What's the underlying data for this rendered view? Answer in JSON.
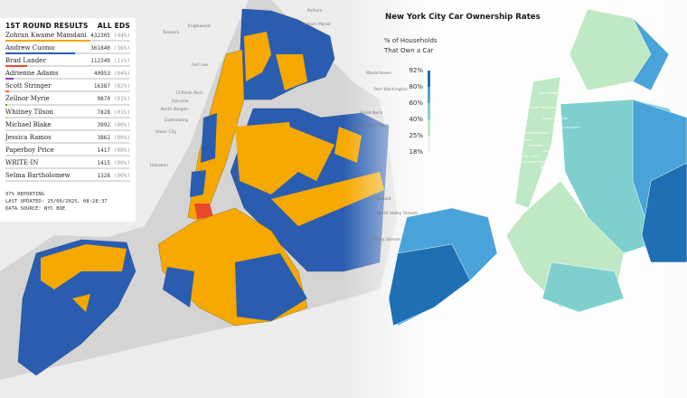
{
  "results_panel": {
    "title": "1ST ROUND RESULTS",
    "scope": "ALL EDS",
    "candidates": [
      {
        "name": "Zohran Kwame Mamdani",
        "votes": "432305",
        "pct": "(44%)",
        "share": 44,
        "color": "#f5a800"
      },
      {
        "name": "Andrew Cuomo",
        "votes": "361840",
        "pct": "(36%)",
        "share": 36,
        "color": "#2a5db0"
      },
      {
        "name": "Brad Lander",
        "votes": "112349",
        "pct": "(11%)",
        "share": 11,
        "color": "#e8492f"
      },
      {
        "name": "Adrienne Adams",
        "votes": "40953",
        "pct": "(04%)",
        "share": 4,
        "color": "#8a3fc9"
      },
      {
        "name": "Scott Stringer",
        "votes": "16387",
        "pct": "(02%)",
        "share": 2,
        "color": "#e8692f"
      },
      {
        "name": "Zellnor Myrie",
        "votes": "9870",
        "pct": "(01%)",
        "share": 1,
        "color": "#5aa832"
      },
      {
        "name": "Whitney Tilson",
        "votes": "7828",
        "pct": "(01%)",
        "share": 1,
        "color": "#b6e07a"
      },
      {
        "name": "Michael Blake",
        "votes": "3992",
        "pct": "(00%)",
        "share": 0,
        "color": "#999999"
      },
      {
        "name": "Jessica Ramos",
        "votes": "3862",
        "pct": "(00%)",
        "share": 0,
        "color": "#999999"
      },
      {
        "name": "Paperboy Price",
        "votes": "1417",
        "pct": "(00%)",
        "share": 0,
        "color": "#999999"
      },
      {
        "name": "WRITE-IN",
        "votes": "1415",
        "pct": "(00%)",
        "share": 0,
        "color": "#999999"
      },
      {
        "name": "Selma Bartholomew",
        "votes": "1328",
        "pct": "(00%)",
        "share": 0,
        "color": "#999999"
      }
    ],
    "reporting": "97% REPORTING",
    "updated": "LAST UPDATED: 25/06/2025, 08:28:37",
    "source": "DATA SOURCE: NYC BOE"
  },
  "car_map": {
    "title": "New York City Car Ownership Rates",
    "subtitle_line1": "% of Households",
    "subtitle_line2": "That Own a Car",
    "legend": [
      {
        "label": "92%",
        "color": "#1f6fb4"
      },
      {
        "label": "80%",
        "color": "#4aa3d8"
      },
      {
        "label": "60%",
        "color": "#7fcfcf"
      },
      {
        "label": "40%",
        "color": "#bfe8c4"
      },
      {
        "label": "25%",
        "color": "#eaf7ea"
      },
      {
        "label": "18%",
        "color": ""
      }
    ],
    "neighborhoods": [
      "Morningside Heights",
      "Upper West Side",
      "Upper East Side",
      "Roosevelt Island",
      "Clinton Midtown",
      "Chelsea",
      "Gramercy",
      "Greenpoint",
      "Tribeca",
      "Soho",
      "Chinatown",
      "North Side",
      "Williamsburg"
    ]
  },
  "basemap_labels": [
    "Pelham",
    "Pelham Manor",
    "Englewood",
    "Teaneck",
    "Fort Lee",
    "Cliffside Park",
    "Fairview",
    "North Bergen",
    "Guttenberg",
    "Union City",
    "Hoboken",
    "Manorhaven",
    "Port Washington",
    "Great Neck",
    "Great Neck Plaza",
    "Elmont",
    "North Valley Stream",
    "Valley Stream"
  ],
  "colors": {
    "mamdani": "#f5a800",
    "cuomo": "#2a5db0",
    "lander": "#e8492f",
    "water": "#d4d4d4",
    "land": "#ececec"
  }
}
